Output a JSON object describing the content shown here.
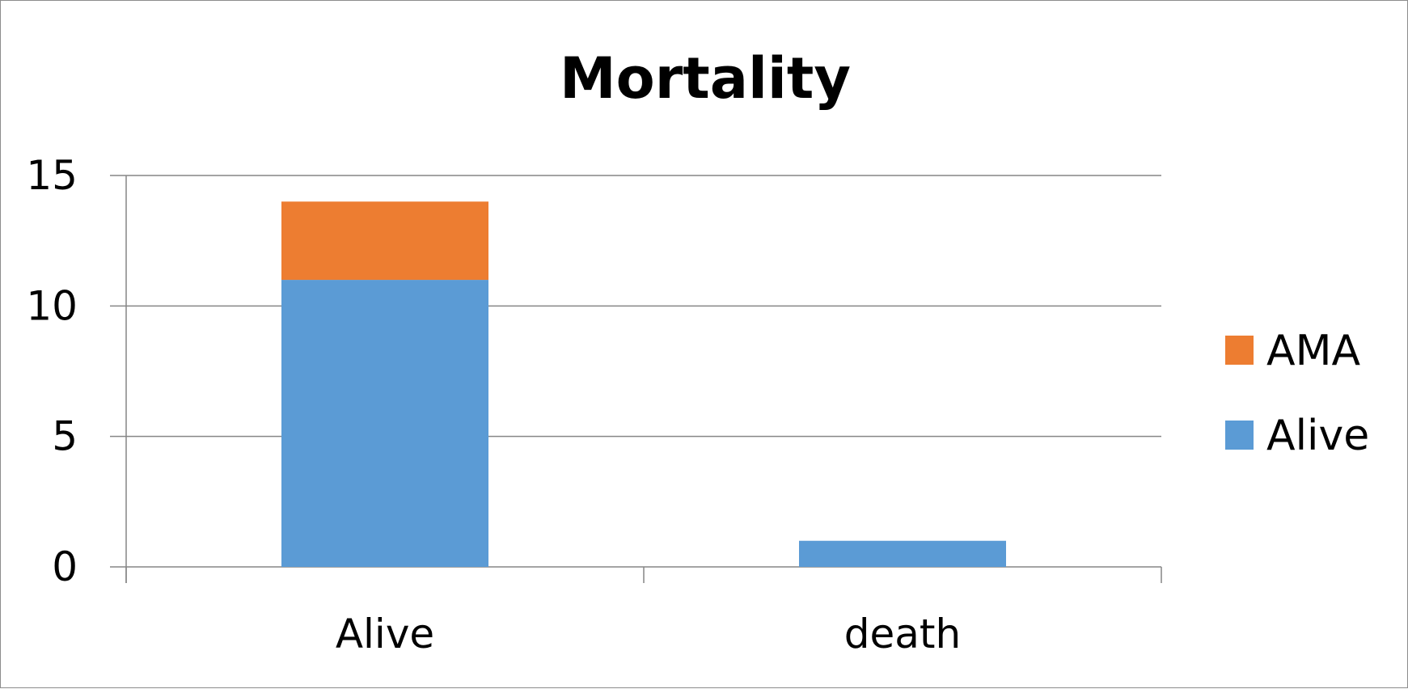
{
  "chart_data": {
    "type": "bar",
    "stacked": true,
    "title": "Mortality",
    "categories": [
      "Alive",
      "death"
    ],
    "series": [
      {
        "name": "Alive",
        "values": [
          11,
          1
        ],
        "color": "#5b9bd5"
      },
      {
        "name": "AMA",
        "values": [
          3,
          0
        ],
        "color": "#ed7d31"
      }
    ],
    "xlabel": "",
    "ylabel": "",
    "ylim": [
      0,
      15
    ],
    "yticks": [
      0,
      5,
      10,
      15
    ],
    "grid": true,
    "legend": "right"
  }
}
